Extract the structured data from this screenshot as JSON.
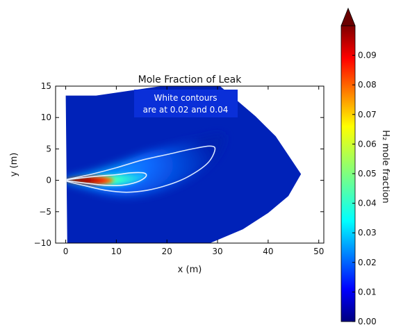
{
  "chart_data": {
    "type": "heatmap",
    "title": "Mole Fraction of Leak",
    "annotation": [
      "White contours",
      "are at 0.02 and 0.04"
    ],
    "xlabel": "x (m)",
    "ylabel": "y (m)",
    "xlim": [
      -2,
      51
    ],
    "ylim": [
      -10,
      15
    ],
    "xticks": [
      0,
      10,
      20,
      30,
      40,
      50
    ],
    "yticks": [
      -10,
      -5,
      0,
      5,
      10,
      15
    ],
    "colorbar": {
      "label": "H₂ mole fraction",
      "range": [
        0,
        0.1
      ],
      "ticks": [
        "0.00",
        "0.01",
        "0.02",
        "0.03",
        "0.04",
        "0.05",
        "0.06",
        "0.07",
        "0.08",
        "0.09"
      ],
      "colormap": "jet",
      "extend": "max"
    },
    "contour_levels": [
      0.02,
      0.04
    ],
    "source_point": [
      0,
      0
    ],
    "domain_boundary": [
      [
        0,
        13.5
      ],
      [
        6,
        13.5
      ],
      [
        12,
        14.2
      ],
      [
        18,
        14.9
      ],
      [
        19.5,
        15
      ],
      [
        30.5,
        15
      ],
      [
        33,
        13.3
      ],
      [
        37.5,
        10.2
      ],
      [
        41.5,
        7
      ],
      [
        46.5,
        1
      ],
      [
        44,
        -2.5
      ],
      [
        40,
        -5.2
      ],
      [
        35,
        -7.8
      ],
      [
        30,
        -9.5
      ],
      [
        28.5,
        -10
      ],
      [
        0.3,
        -10
      ]
    ],
    "contour_002": [
      [
        0,
        0.1
      ],
      [
        5,
        0.95
      ],
      [
        10,
        2
      ],
      [
        15,
        3.2
      ],
      [
        20,
        4.1
      ],
      [
        25,
        5
      ],
      [
        28.5,
        5.45
      ],
      [
        29.5,
        4.9
      ],
      [
        28,
        2.7
      ],
      [
        24,
        0.5
      ],
      [
        20,
        -0.8
      ],
      [
        16,
        -1.6
      ],
      [
        12,
        -1.9
      ],
      [
        8,
        -1.6
      ],
      [
        4,
        -0.9
      ],
      [
        0,
        -0.1
      ]
    ],
    "contour_004": [
      [
        0,
        0.05
      ],
      [
        5,
        0.55
      ],
      [
        10,
        0.9
      ],
      [
        13,
        1.2
      ],
      [
        15.5,
        1.15
      ],
      [
        15.8,
        0.55
      ],
      [
        14,
        -0.3
      ],
      [
        11,
        -0.8
      ],
      [
        8,
        -0.8
      ],
      [
        5,
        -0.55
      ],
      [
        2,
        -0.25
      ],
      [
        0,
        -0.05
      ]
    ],
    "core_region": [
      [
        0,
        0.05
      ],
      [
        3,
        0.5
      ],
      [
        6,
        0.6
      ],
      [
        8.5,
        0.4
      ],
      [
        9.5,
        0
      ],
      [
        8.5,
        -0.45
      ],
      [
        6,
        -0.65
      ],
      [
        3,
        -0.5
      ],
      [
        0,
        -0.05
      ]
    ]
  }
}
